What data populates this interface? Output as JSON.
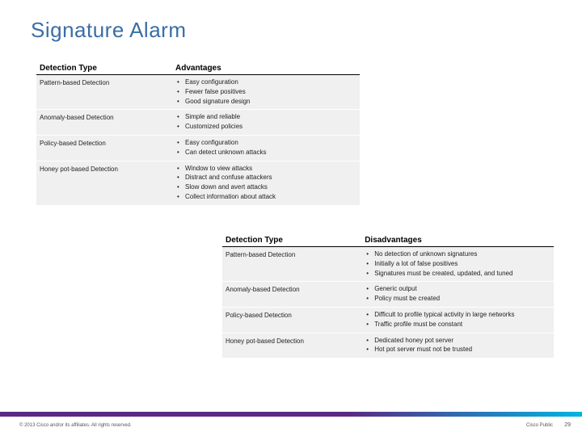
{
  "title": "Signature Alarm",
  "table_advantages": {
    "headers": [
      "Detection Type",
      "Advantages"
    ],
    "rows": [
      {
        "type": "Pattern-based Detection",
        "items": [
          "Easy configuration",
          "Fewer false positives",
          "Good signature design"
        ]
      },
      {
        "type": "Anomaly-based Detection",
        "items": [
          "Simple and reliable",
          "Customized policies"
        ]
      },
      {
        "type": "Policy-based Detection",
        "items": [
          "Easy configuration",
          "Can detect unknown attacks"
        ]
      },
      {
        "type": "Honey pot-based Detection",
        "items": [
          "Window to view attacks",
          "Distract and confuse attackers",
          "Slow down and avert attacks",
          "Collect information about attack"
        ]
      }
    ]
  },
  "table_disadvantages": {
    "headers": [
      "Detection Type",
      "Disadvantages"
    ],
    "rows": [
      {
        "type": "Pattern-based Detection",
        "items": [
          "No detection of unknown signatures",
          "Initially a lot of false positives",
          "Signatures must be created, updated, and tuned"
        ]
      },
      {
        "type": "Anomaly-based Detection",
        "items": [
          "Generic output",
          "Policy must be created"
        ]
      },
      {
        "type": "Policy-based Detection",
        "items": [
          "Difficult to profile typical activity in large networks",
          "Traffic profile must be constant"
        ]
      },
      {
        "type": "Honey pot-based Detection",
        "items": [
          "Dedicated honey pot server",
          "Hot pot server must not be trusted"
        ]
      }
    ]
  },
  "footer": {
    "copyright": "© 2013 Cisco and/or its affiliates. All rights reserved.",
    "classification": "Cisco Public",
    "page": "29"
  },
  "colors": {
    "title_color": "#3a6ea5",
    "row_bg": "#f0f0f0",
    "bar_left": "#5a2a82",
    "bar_right": "#00b5e2"
  }
}
